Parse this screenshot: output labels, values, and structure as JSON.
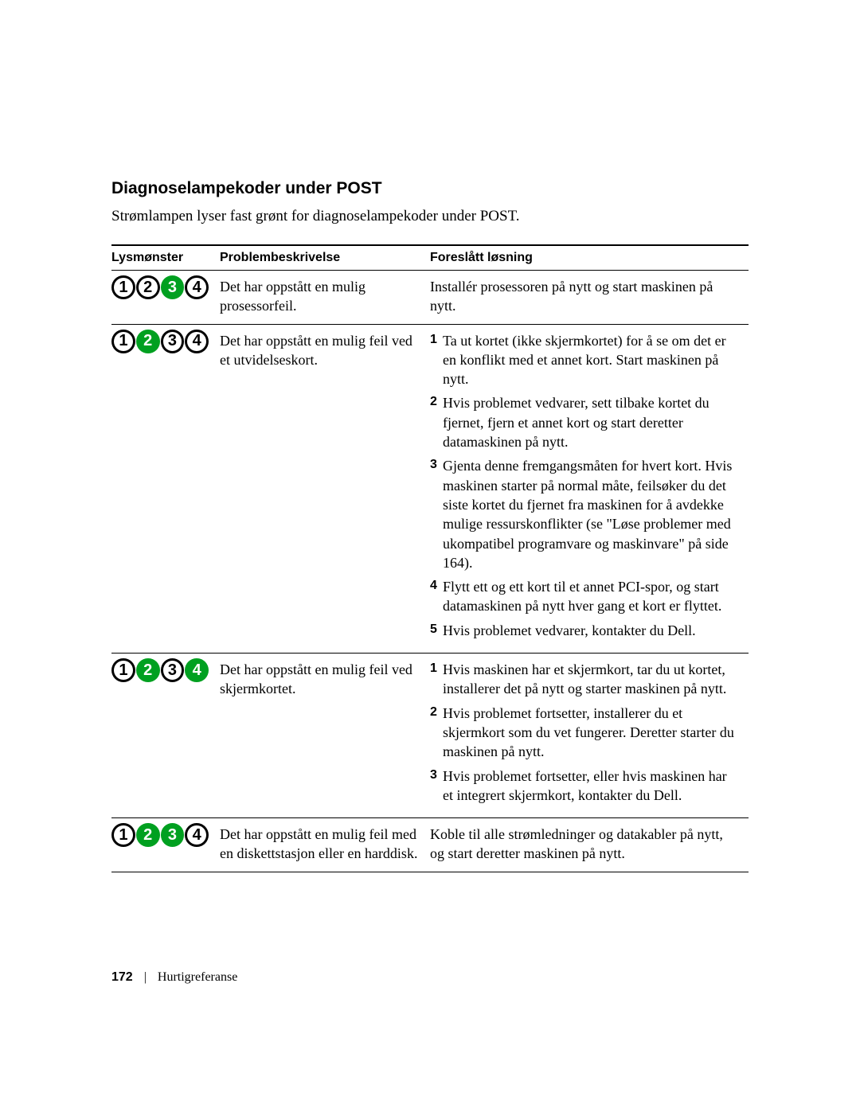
{
  "heading": "Diagnoselampekoder under POST",
  "intro": "Strømlampen lyser fast grønt for diagnoselampekoder under POST.",
  "columns": {
    "pattern": "Lysmønster",
    "problem": "Problembeskrivelse",
    "solution": "Foreslått løsning"
  },
  "light_on_color": "#00a020",
  "light_off_stroke": "#000000",
  "rows": [
    {
      "pattern": [
        false,
        false,
        true,
        false
      ],
      "problem": "Det har oppstått en mulig prosessorfeil.",
      "solution_type": "plain",
      "solution_text": "Installér prosessoren på nytt og start maskinen på nytt."
    },
    {
      "pattern": [
        false,
        true,
        false,
        false
      ],
      "problem": "Det har oppstått en mulig feil ved et utvidelseskort.",
      "solution_type": "list",
      "solution_items": [
        "Ta ut kortet (ikke skjermkortet) for å se om det er en konflikt med et annet kort. Start maskinen på nytt.",
        "Hvis problemet vedvarer, sett tilbake kortet du fjernet, fjern et annet kort og start deretter datamaskinen på nytt.",
        "Gjenta denne fremgangsmåten for hvert kort. Hvis maskinen starter på normal måte, feilsøker du det siste kortet du fjernet fra maskinen for å avdekke mulige ressurskonflikter (se \"Løse problemer med ukompatibel programvare og maskinvare\" på side 164).",
        "Flytt ett og ett kort til et annet PCI-spor, og start datamaskinen på nytt hver gang et kort er flyttet.",
        "Hvis problemet vedvarer, kontakter du Dell."
      ]
    },
    {
      "pattern": [
        false,
        true,
        false,
        true
      ],
      "problem": "Det har oppstått en mulig feil ved skjermkortet.",
      "solution_type": "list",
      "solution_items": [
        "Hvis maskinen har et skjermkort, tar du ut kortet, installerer det på nytt og starter maskinen på nytt.",
        "Hvis problemet fortsetter, installerer du et skjermkort som du vet fungerer. Deretter starter du maskinen på nytt.",
        "Hvis problemet fortsetter, eller hvis maskinen har et integrert skjermkort, kontakter du Dell."
      ]
    },
    {
      "pattern": [
        false,
        true,
        true,
        false
      ],
      "problem": "Det har oppstått en mulig feil med en diskettstasjon eller en harddisk.",
      "solution_type": "plain",
      "solution_text": "Koble til alle strømledninger og datakabler på nytt, og start deretter maskinen på nytt."
    }
  ],
  "footer": {
    "page_number": "172",
    "section": "Hurtigreferanse"
  }
}
